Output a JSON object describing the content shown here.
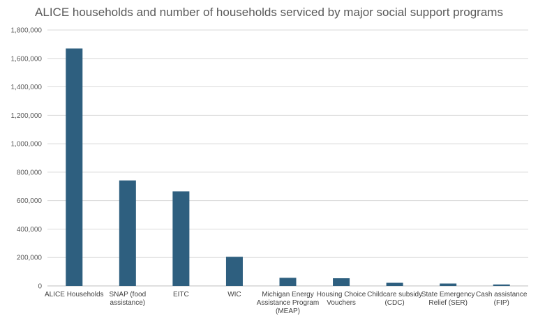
{
  "chart_data": {
    "type": "bar",
    "title": "ALICE households and number of households serviced by major social support programs",
    "xlabel": "",
    "ylabel": "",
    "ylim": [
      0,
      1800000
    ],
    "yticks": [
      "0",
      "200,000",
      "400,000",
      "600,000",
      "800,000",
      "1,000,000",
      "1,200,000",
      "1,400,000",
      "1,600,000",
      "1,800,000"
    ],
    "grid": true,
    "bar_color": "#2e5f7f",
    "categories": [
      [
        "ALICE Households"
      ],
      [
        "SNAP (food",
        "assistance)"
      ],
      [
        "EITC"
      ],
      [
        "WIC"
      ],
      [
        "Michigan Energy",
        "Assistance Program",
        "(MEAP)"
      ],
      [
        "Housing Choice",
        "Vouchers"
      ],
      [
        "Childcare subsidy",
        "(CDC)"
      ],
      [
        "State Emergency",
        "Relief (SER)"
      ],
      [
        "Cash assistance",
        "(FIP)"
      ]
    ],
    "values": [
      1670000,
      742000,
      665000,
      205000,
      57000,
      54000,
      22000,
      17000,
      10000
    ]
  }
}
